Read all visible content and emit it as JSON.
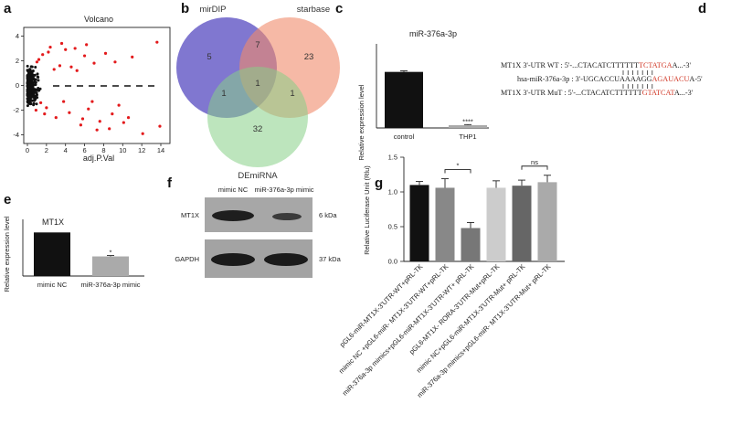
{
  "panel_letters": [
    "a",
    "b",
    "c",
    "d",
    "e",
    "f",
    "g"
  ],
  "panel_a": {
    "title": "Volcano",
    "xlabel": "adj.P.Val",
    "x_ticks": [
      "0",
      "2",
      "4",
      "6",
      "8",
      "10",
      "12",
      "14"
    ],
    "y_ticks": [
      "4",
      "2",
      "0",
      "-2",
      "-4"
    ],
    "colors": {
      "up_down": "#e31a1c",
      "other": "#111111"
    }
  },
  "panel_b": {
    "sets": [
      "mirDIP",
      "starbase",
      "DEmiRNA"
    ],
    "colors": [
      "#6a5fc8",
      "#f08a6a",
      "#86cf86"
    ],
    "counts": {
      "mirdip_only": "5",
      "starbase_only": "23",
      "demirna_only": "32",
      "mirdip_starbase": "7",
      "mirdip_demirna": "1",
      "starbase_demirna": "1",
      "all_three": "1"
    }
  },
  "panel_c": {
    "chart_data": {
      "type": "bar",
      "title": "miR-376a-3p",
      "ylabel": "Relative expression level",
      "categories": [
        "control",
        "THP1"
      ],
      "values": [
        1.0,
        0.05
      ],
      "errors": [
        0.02,
        0.01
      ],
      "ylim": [
        0,
        1.5
      ],
      "significance": "****",
      "colors": [
        "#111111",
        "#aaaaaa"
      ]
    }
  },
  "panel_d": {
    "line1_prefix": "MT1X 3'-UTR WT : 5'-...CTACATCTTTTTT",
    "line1_red": "TCTATGA",
    "line1_suffix": "A...-3'",
    "line2_prefix": "hsa-miR-376a-3p : 3'-UGCACCUAAAAGG",
    "line2_red": "AGAUACU",
    "line2_suffix": "A-5'",
    "line3_prefix": "MT1X 3'-UTR MuT : 5'-...CTACATCTTTTTT",
    "line3_red": "GTATCAT",
    "line3_suffix": "A...-3'"
  },
  "panel_e": {
    "chart_data": {
      "type": "bar",
      "title": "MT1X",
      "ylabel": "Relative expression level",
      "categories": [
        "mimic NC",
        "miR-376a-3p mimic"
      ],
      "values": [
        1.0,
        0.45
      ],
      "errors": [
        0.0,
        0.02
      ],
      "ylim": [
        0,
        1.3
      ],
      "significance": "*",
      "colors": [
        "#111111",
        "#aaaaaa"
      ]
    }
  },
  "panel_f": {
    "lanes": [
      "mimic NC",
      "miR-376a-3p mimic"
    ],
    "rows": [
      {
        "label": "MT1X",
        "size": "6 kDa"
      },
      {
        "label": "GAPDH",
        "size": "37 kDa"
      }
    ]
  },
  "panel_g": {
    "chart_data": {
      "type": "bar",
      "ylabel": "Relative Luciferase Unit (Rlu)",
      "ylim": [
        0,
        1.5
      ],
      "y_ticks": [
        "0.0",
        "0.5",
        "1.0",
        "1.5"
      ],
      "categories": [
        "pGL6-miR-MT1X-3'UTR-WT+pRL-TK",
        "mimic NC +pGL6-miR- MT1X-3'UTR-WT+pRL-TK",
        "miR-376a-3p mimics+pGL6-miR-MT1X-3'UTR-WT+ pRL-TK",
        "pGL6-MT1X- RORA-3'UTR-Mut+pRL-TK",
        "mimic NC+pGL6-miR-MT1X-3'UTR-Mut+ pRL-TK",
        "miR-376a-3p mimics+pGL6-miR- MT1X-3'UTR-Mut+ pRL-TK"
      ],
      "values": [
        1.1,
        1.06,
        0.48,
        1.06,
        1.09,
        1.14
      ],
      "errors": [
        0.05,
        0.13,
        0.08,
        0.1,
        0.08,
        0.1
      ],
      "colors": [
        "#111111",
        "#888888",
        "#777777",
        "#cccccc",
        "#666666",
        "#aaaaaa"
      ],
      "brackets": [
        {
          "from": 1,
          "to": 2,
          "label": "*"
        },
        {
          "from": 4,
          "to": 5,
          "label": "ns"
        }
      ]
    }
  }
}
